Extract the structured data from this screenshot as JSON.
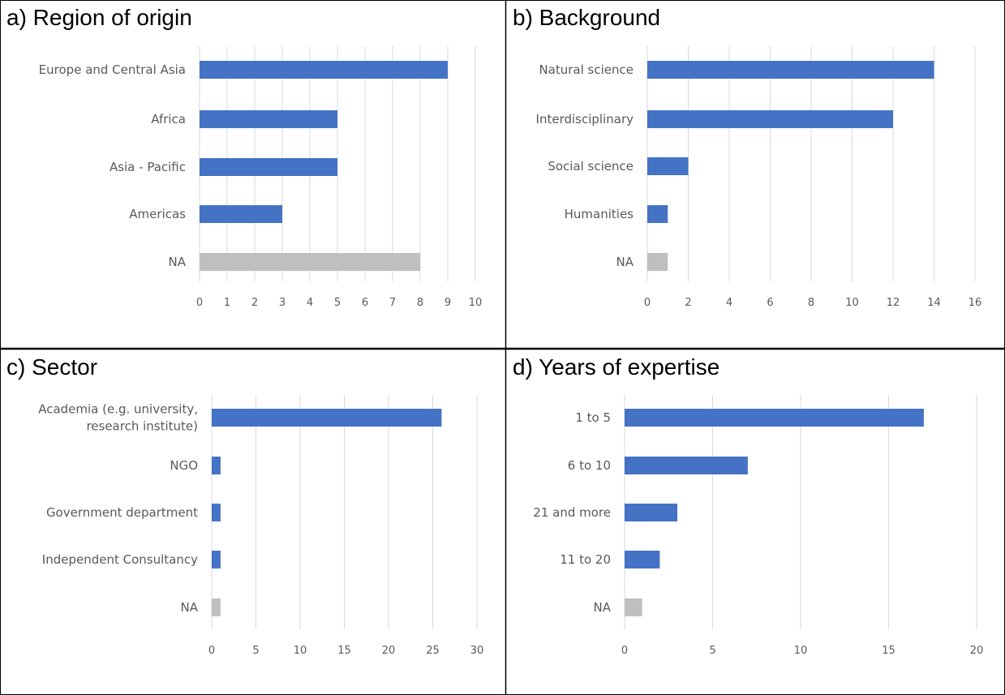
{
  "colors": {
    "bar": "#4472C4",
    "na_bar": "#BFBFBF",
    "grid": "#D9D9D9",
    "text": "#595959",
    "border": "#000000"
  },
  "chart_data": [
    {
      "type": "bar",
      "orientation": "horizontal",
      "title": "a) Region of origin",
      "categories": [
        "Europe and Central Asia",
        "Africa",
        "Asia - Pacific",
        "Americas",
        "NA"
      ],
      "values": [
        9,
        5,
        5,
        3,
        8
      ],
      "xlim": [
        0,
        10
      ],
      "ticks": [
        0,
        1,
        2,
        3,
        4,
        5,
        6,
        7,
        8,
        9,
        10
      ],
      "grid": true
    },
    {
      "type": "bar",
      "orientation": "horizontal",
      "title": "b) Background",
      "categories": [
        "Natural science",
        "Interdisciplinary",
        "Social science",
        "Humanities",
        "NA"
      ],
      "values": [
        14,
        12,
        2,
        1,
        1
      ],
      "xlim": [
        0,
        16
      ],
      "ticks": [
        0,
        2,
        4,
        6,
        8,
        10,
        12,
        14,
        16
      ],
      "grid": true
    },
    {
      "type": "bar",
      "orientation": "horizontal",
      "title": "c) Sector",
      "categories": [
        "Academia (e.g. university, research institute)",
        "NGO",
        "Government department",
        "Independent Consultancy",
        "NA"
      ],
      "category_lines": [
        [
          "Academia (e.g. university,",
          "research institute)"
        ],
        [
          "NGO"
        ],
        [
          "Government department"
        ],
        [
          "Independent Consultancy"
        ],
        [
          "NA"
        ]
      ],
      "values": [
        26,
        1,
        1,
        1,
        1
      ],
      "xlim": [
        0,
        30
      ],
      "ticks": [
        0,
        5,
        10,
        15,
        20,
        25,
        30
      ],
      "grid": true
    },
    {
      "type": "bar",
      "orientation": "horizontal",
      "title": "d) Years of expertise",
      "categories": [
        "1 to 5",
        "6 to 10",
        "21 and more",
        "11 to 20",
        "NA"
      ],
      "values": [
        17,
        7,
        3,
        2,
        1
      ],
      "xlim": [
        0,
        20
      ],
      "ticks": [
        0,
        5,
        10,
        15,
        20
      ],
      "grid": true
    }
  ]
}
